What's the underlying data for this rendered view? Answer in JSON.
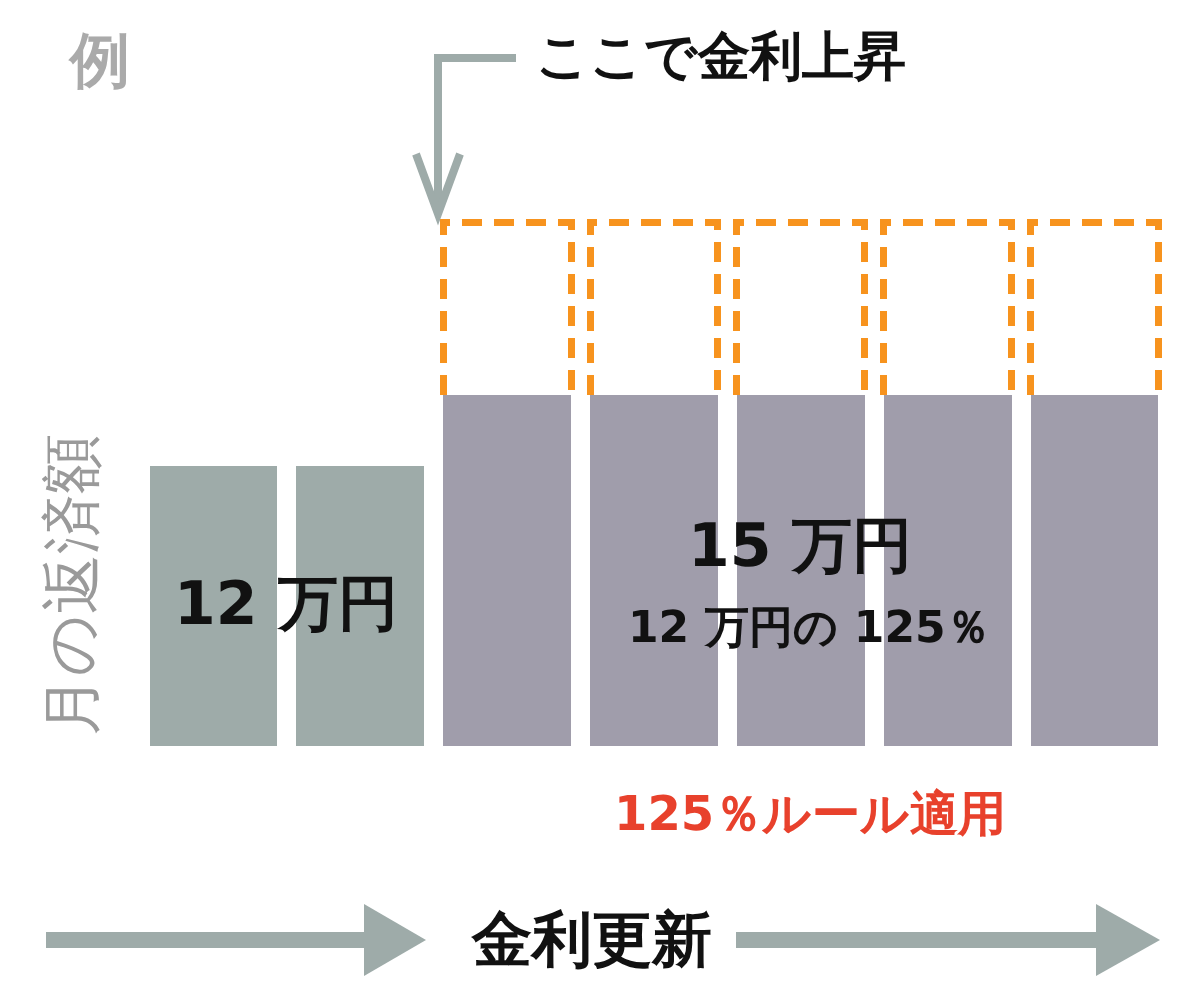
{
  "chart_data": {
    "type": "bar",
    "title": "例",
    "ylabel": "月の返済額",
    "xlabel": "金利更新",
    "stacked": true,
    "categories": [
      null,
      null,
      null,
      null,
      null,
      null,
      null
    ],
    "series": [
      {
        "colors": [
          "#9eaba9",
          "#9eaba9",
          "#a09dab",
          "#a09dab",
          "#a09dab",
          "#a09dab",
          "#a09dab"
        ],
        "values": [
          12,
          12,
          15,
          15,
          15,
          15,
          15
        ],
        "value_labels": [
          "12 万円",
          null,
          null,
          null,
          "15 万円",
          null,
          null
        ]
      },
      {
        "color": "#f7931e",
        "line_style": "dashed",
        "values": [
          null,
          null,
          7.4,
          7.4,
          7.4,
          7.4,
          7.4
        ]
      }
    ],
    "annotations": [
      "ここで金利上昇",
      "12 万円の 125％",
      "125％ルール適用"
    ]
  }
}
